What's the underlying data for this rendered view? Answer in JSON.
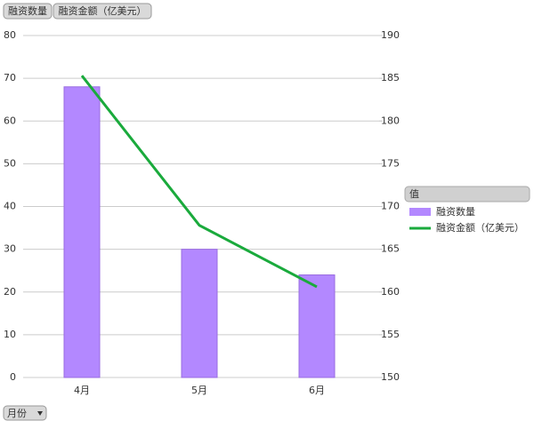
{
  "chart_data": {
    "type": "bar_line",
    "categories": [
      "4月",
      "5月",
      "6月"
    ],
    "series": [
      {
        "name": "融资数量",
        "color": "#b388ff",
        "values": [
          68,
          30,
          24
        ]
      },
      {
        "name": "融资金额（亿美元）",
        "color": "#1aaa3c",
        "values": [
          185.3,
          167.8,
          160.6
        ],
        "axis": "y2"
      }
    ],
    "ylim": [
      0,
      80
    ],
    "yticks": [
      0,
      10,
      20,
      30,
      40,
      50,
      60,
      70,
      80
    ],
    "y2lim": [
      150,
      190
    ],
    "y2ticks": [
      150,
      155,
      160,
      165,
      170,
      175,
      180,
      185,
      190
    ],
    "grid": true,
    "legend_title": "值",
    "x_field": "月份"
  }
}
